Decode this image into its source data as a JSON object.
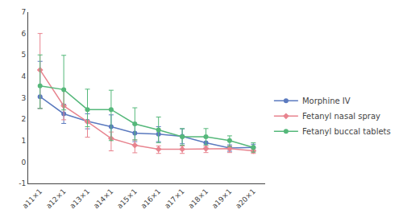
{
  "chart_data": {
    "type": "line",
    "categories": [
      "a11×1",
      "a12×1",
      "a13×1",
      "a14×1",
      "a15×1",
      "a16×1",
      "a17×1",
      "a18×1",
      "a19×1",
      "a20×1"
    ],
    "series": [
      {
        "name": "Morphine IV",
        "color": "#5b7abf",
        "marker": "circle",
        "values": [
          3.05,
          2.25,
          1.9,
          1.65,
          1.35,
          1.3,
          1.2,
          0.9,
          0.65,
          0.68
        ],
        "err_lo": [
          0.55,
          0.45,
          0.35,
          0.55,
          0.4,
          0.35,
          0.35,
          0.25,
          0.15,
          0.15
        ],
        "err_hi": [
          1.65,
          0.45,
          0.35,
          0.55,
          0.4,
          0.35,
          0.35,
          0.25,
          0.15,
          0.15
        ]
      },
      {
        "name": "Fetanyl nasal spray",
        "color": "#e8848f",
        "marker": "diamond",
        "values": [
          4.3,
          2.62,
          1.88,
          1.1,
          0.78,
          0.6,
          0.6,
          0.62,
          0.62,
          0.52
        ],
        "err_lo": [
          1.8,
          0.65,
          0.72,
          0.58,
          0.35,
          0.2,
          0.2,
          0.18,
          0.18,
          0.12
        ],
        "err_hi": [
          1.7,
          0.78,
          0.55,
          0.3,
          0.25,
          0.15,
          0.15,
          0.12,
          0.12,
          0.12
        ]
      },
      {
        "name": "Fetanyl buccal tablets",
        "color": "#55b87a",
        "marker": "circle",
        "values": [
          3.55,
          3.38,
          2.45,
          2.45,
          1.78,
          1.5,
          1.18,
          1.18,
          1.0,
          0.68
        ],
        "err_lo": [
          1.05,
          0.95,
          0.8,
          1.45,
          0.75,
          0.6,
          0.4,
          0.38,
          0.28,
          0.22
        ],
        "err_hi": [
          1.45,
          1.6,
          0.95,
          0.9,
          0.75,
          0.6,
          0.38,
          0.38,
          0.22,
          0.22
        ]
      }
    ],
    "ylim": [
      -1,
      7
    ],
    "yticks": [
      -1,
      0,
      1,
      2,
      3,
      4,
      5,
      6,
      7
    ],
    "grid": false,
    "legend": "right"
  }
}
